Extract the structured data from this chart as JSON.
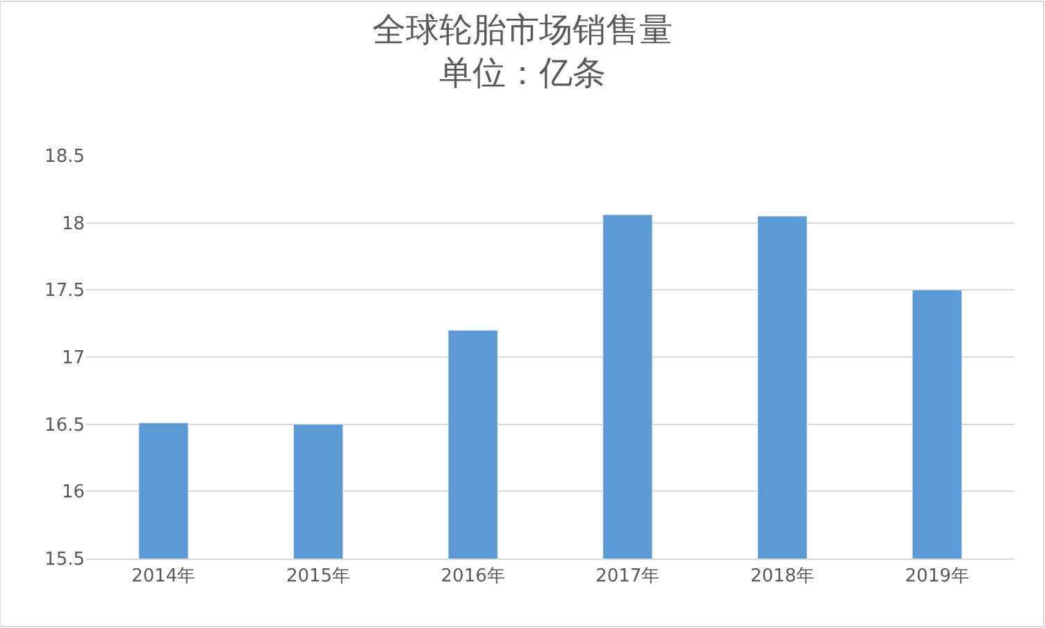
{
  "chart_data": {
    "type": "bar",
    "title": "全球轮胎市场销售量",
    "subtitle": "单位：亿条",
    "categories": [
      "2014年",
      "2015年",
      "2016年",
      "2017年",
      "2018年",
      "2019年"
    ],
    "values": [
      16.51,
      16.5,
      17.2,
      18.06,
      18.05,
      17.5
    ],
    "color": "#5b9bd5",
    "ylim": [
      15.5,
      18.5
    ],
    "yticks": [
      15.5,
      16,
      16.5,
      17,
      17.5,
      18,
      18.5
    ],
    "grid": "y"
  }
}
